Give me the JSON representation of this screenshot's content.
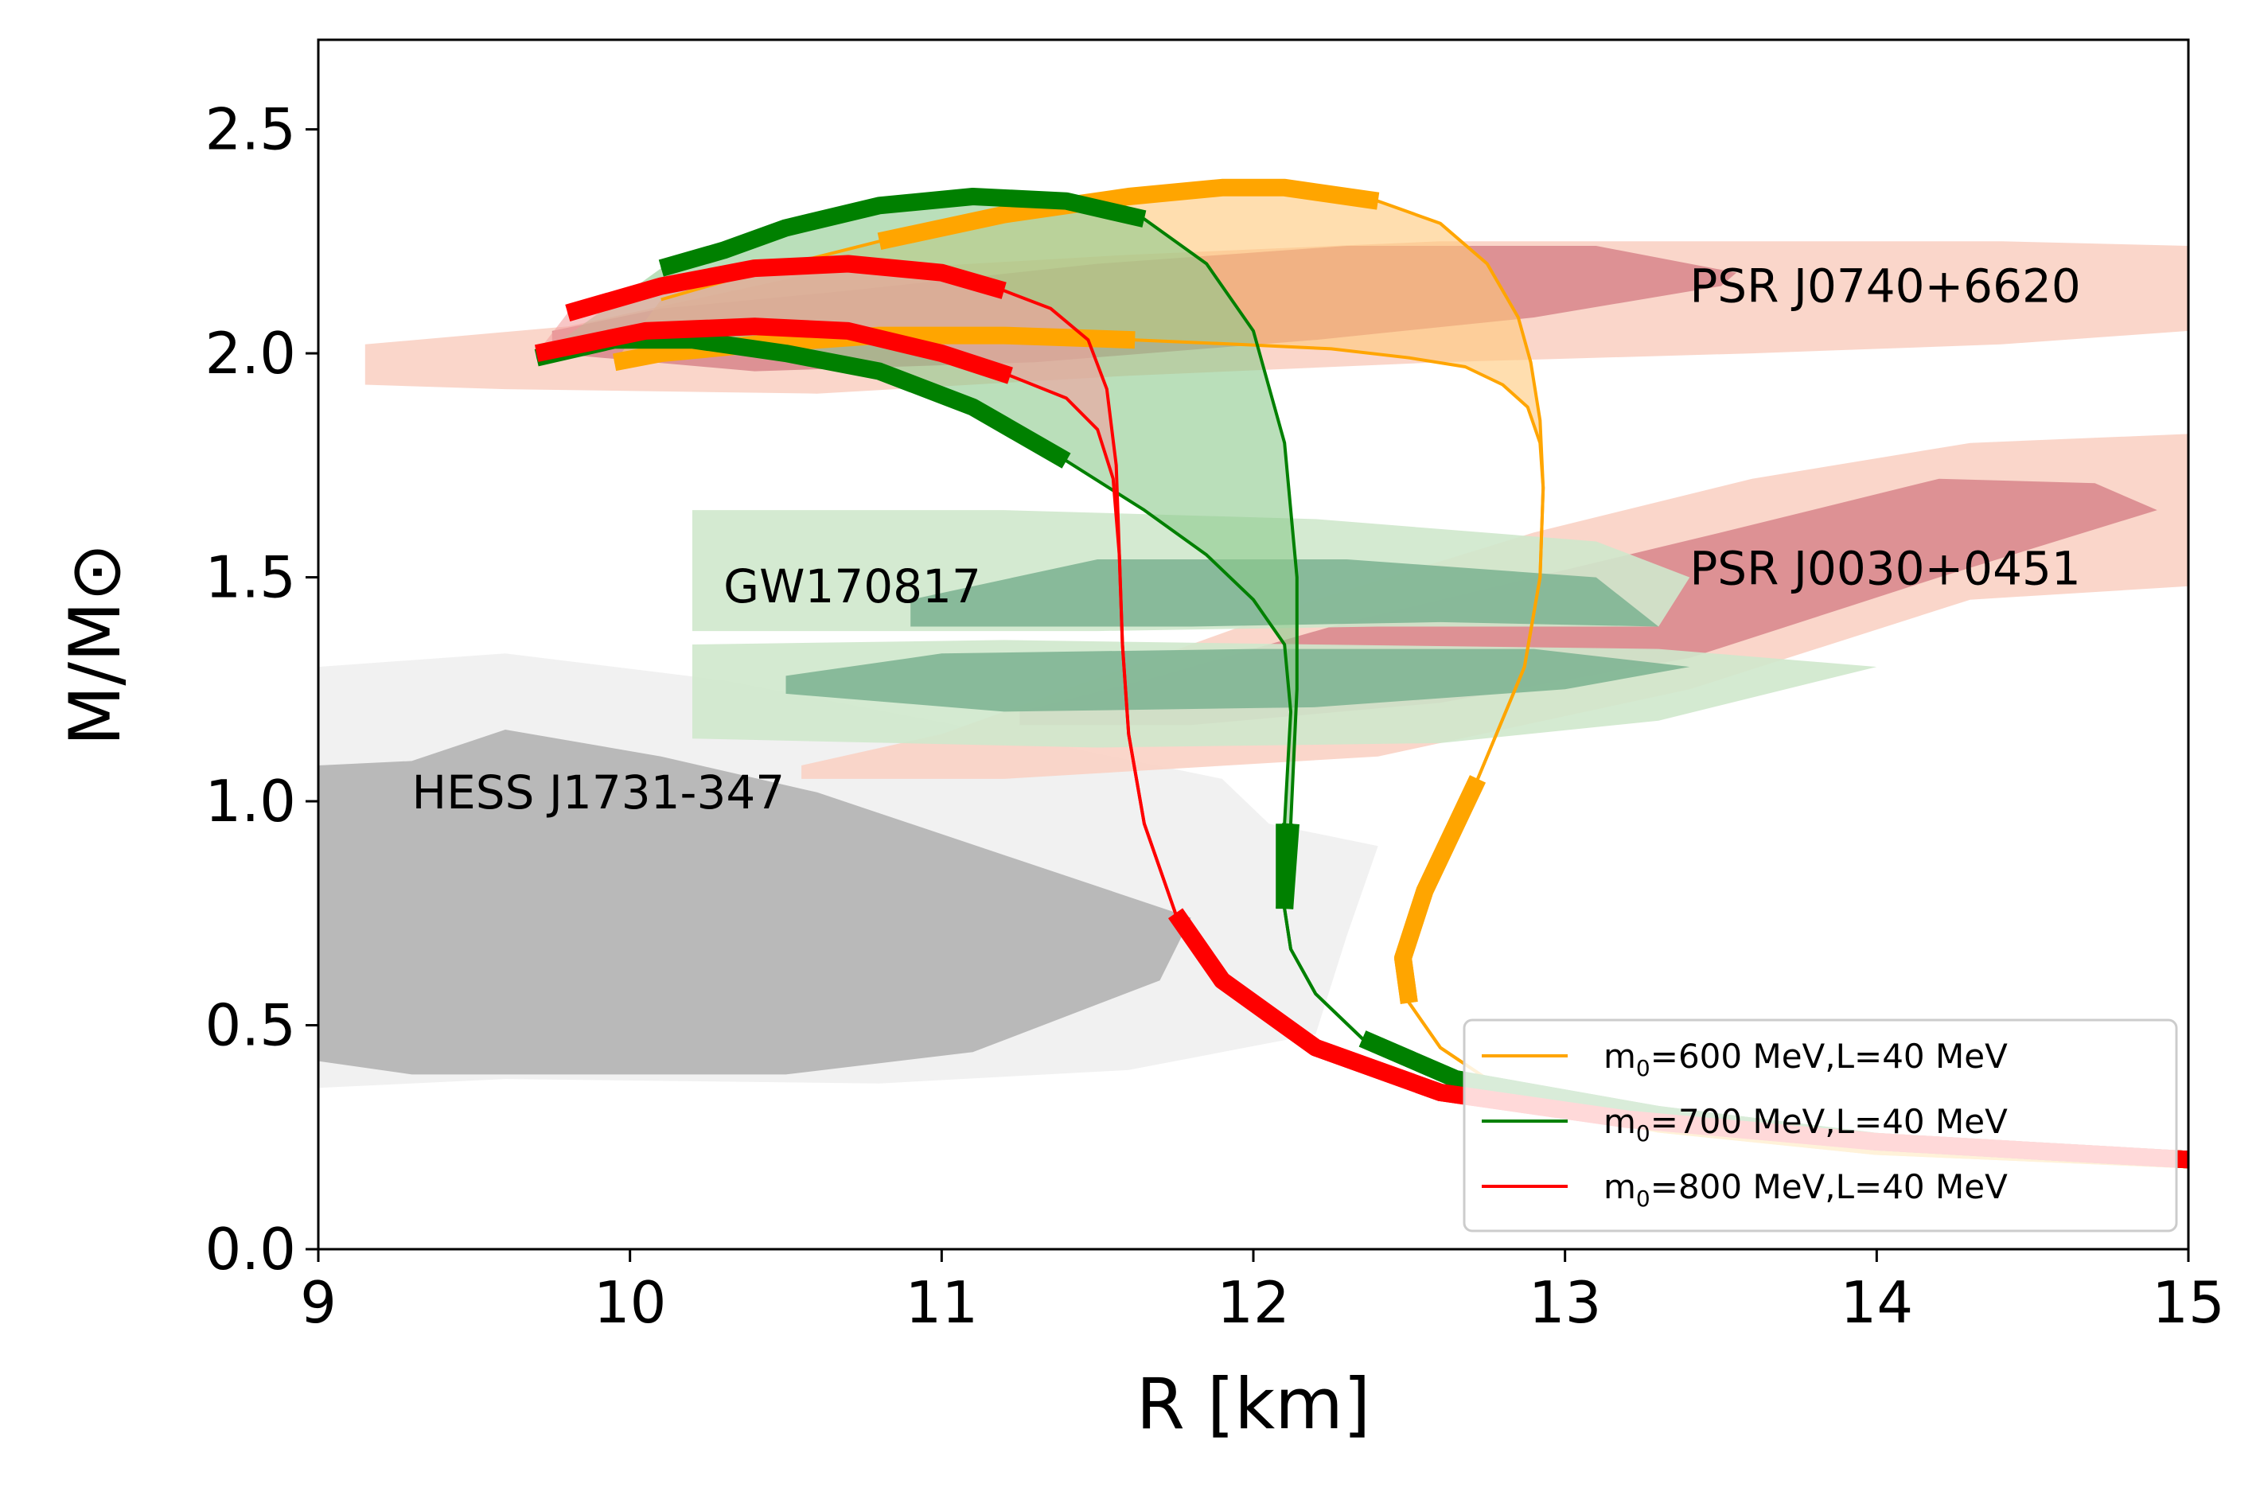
{
  "chart_data": {
    "type": "line",
    "title": "",
    "xlabel": "R [km]",
    "ylabel": "M/M⊙",
    "xlim": [
      9,
      15
    ],
    "ylim": [
      0,
      2.7
    ],
    "xticks": [
      9,
      10,
      11,
      12,
      13,
      14,
      15
    ],
    "xtick_labels": [
      "9",
      "10",
      "11",
      "12",
      "13",
      "14",
      "15"
    ],
    "yticks": [
      0,
      0.5,
      1.0,
      1.5,
      2.0,
      2.5
    ],
    "ytick_labels": [
      "0.0",
      "0.5",
      "1.0",
      "1.5",
      "2.0",
      "2.5"
    ],
    "grid": false,
    "legend_position": "bottom-right",
    "annotations": [
      {
        "text": "PSR J0740+6620",
        "x": 13.4,
        "y": 2.15
      },
      {
        "text": "PSR J0030+0451",
        "x": 13.4,
        "y": 1.52
      },
      {
        "text": "GW170817",
        "x": 10.3,
        "y": 1.48
      },
      {
        "text": "HESS J1731-347",
        "x": 9.3,
        "y": 1.02
      }
    ],
    "regions": [
      {
        "name": "HESS J1731-347 outer",
        "color": "#f0f0f0",
        "points": [
          [
            9,
            0.36
          ],
          [
            9.6,
            0.38
          ],
          [
            10.8,
            0.37
          ],
          [
            11.6,
            0.4
          ],
          [
            12.2,
            0.48
          ],
          [
            12.3,
            0.7
          ],
          [
            12.4,
            0.9
          ],
          [
            12.05,
            0.95
          ],
          [
            11.9,
            1.05
          ],
          [
            11.2,
            1.15
          ],
          [
            10.3,
            1.27
          ],
          [
            9.6,
            1.33
          ],
          [
            9,
            1.3
          ]
        ]
      },
      {
        "name": "HESS J1731-347 inner",
        "color": "#b3b3b3",
        "points": [
          [
            9,
            0.42
          ],
          [
            9.3,
            0.39
          ],
          [
            10.5,
            0.39
          ],
          [
            11.1,
            0.44
          ],
          [
            11.7,
            0.6
          ],
          [
            11.8,
            0.74
          ],
          [
            11.2,
            0.88
          ],
          [
            10.6,
            1.02
          ],
          [
            10.1,
            1.1
          ],
          [
            9.6,
            1.16
          ],
          [
            9.3,
            1.09
          ],
          [
            9,
            1.08
          ]
        ]
      },
      {
        "name": "PSR J0740+6620 outer",
        "color": "#fad2c4",
        "points": [
          [
            9.15,
            1.93
          ],
          [
            9.6,
            1.92
          ],
          [
            10.6,
            1.91
          ],
          [
            11.6,
            1.95
          ],
          [
            12.6,
            1.98
          ],
          [
            13.6,
            2.0
          ],
          [
            14.4,
            2.02
          ],
          [
            15,
            2.05
          ],
          [
            15,
            2.24
          ],
          [
            14.4,
            2.25
          ],
          [
            13.6,
            2.25
          ],
          [
            12.6,
            2.25
          ],
          [
            11.6,
            2.22
          ],
          [
            10.6,
            2.18
          ],
          [
            9.8,
            2.06
          ],
          [
            9.15,
            2.02
          ]
        ]
      },
      {
        "name": "PSR J0740+6620 inner",
        "color": "#d98a8e",
        "points": [
          [
            9.75,
            2.0
          ],
          [
            10.4,
            1.96
          ],
          [
            11.3,
            1.98
          ],
          [
            12.2,
            2.03
          ],
          [
            12.9,
            2.08
          ],
          [
            13.5,
            2.15
          ],
          [
            13.55,
            2.18
          ],
          [
            13.1,
            2.24
          ],
          [
            12.3,
            2.24
          ],
          [
            11.5,
            2.2
          ],
          [
            10.7,
            2.14
          ],
          [
            10.1,
            2.1
          ],
          [
            9.75,
            2.05
          ]
        ]
      },
      {
        "name": "PSR J0030+0451 outer",
        "color": "#fad2c4",
        "points": [
          [
            10.55,
            1.05
          ],
          [
            11.2,
            1.05
          ],
          [
            12.4,
            1.1
          ],
          [
            13.4,
            1.25
          ],
          [
            14.3,
            1.45
          ],
          [
            15,
            1.48
          ],
          [
            15,
            1.82
          ],
          [
            14.3,
            1.8
          ],
          [
            13.6,
            1.72
          ],
          [
            12.9,
            1.6
          ],
          [
            12.2,
            1.45
          ],
          [
            11.6,
            1.3
          ],
          [
            11,
            1.15
          ],
          [
            10.55,
            1.08
          ]
        ]
      },
      {
        "name": "PSR J0030+0451 inner",
        "color": "#d98a8e",
        "points": [
          [
            11.25,
            1.17
          ],
          [
            11.8,
            1.17
          ],
          [
            12.6,
            1.22
          ],
          [
            13.4,
            1.32
          ],
          [
            14.2,
            1.5
          ],
          [
            14.9,
            1.65
          ],
          [
            14.7,
            1.71
          ],
          [
            14.2,
            1.72
          ],
          [
            13.5,
            1.6
          ],
          [
            12.9,
            1.5
          ],
          [
            12.3,
            1.4
          ],
          [
            11.7,
            1.28
          ],
          [
            11.25,
            1.2
          ]
        ]
      },
      {
        "name": "GW170817 outer upper",
        "color": "#cfe8cc",
        "points": [
          [
            10.2,
            1.38
          ],
          [
            11.5,
            1.38
          ],
          [
            12.4,
            1.39
          ],
          [
            13.3,
            1.39
          ],
          [
            13.4,
            1.5
          ],
          [
            13.1,
            1.58
          ],
          [
            12.2,
            1.63
          ],
          [
            11.2,
            1.65
          ],
          [
            10.2,
            1.65
          ]
        ]
      },
      {
        "name": "GW170817 outer lower",
        "color": "#cfe8cc",
        "points": [
          [
            10.2,
            1.14
          ],
          [
            11.5,
            1.12
          ],
          [
            12.6,
            1.13
          ],
          [
            13.3,
            1.18
          ],
          [
            14.0,
            1.3
          ],
          [
            13.3,
            1.34
          ],
          [
            12.2,
            1.35
          ],
          [
            11.2,
            1.36
          ],
          [
            10.2,
            1.35
          ]
        ]
      },
      {
        "name": "GW170817 inner upper",
        "color": "#7fb594",
        "points": [
          [
            10.9,
            1.39
          ],
          [
            11.8,
            1.39
          ],
          [
            12.6,
            1.4
          ],
          [
            13.3,
            1.39
          ],
          [
            13.1,
            1.5
          ],
          [
            12.3,
            1.54
          ],
          [
            11.5,
            1.54
          ],
          [
            10.9,
            1.45
          ]
        ]
      },
      {
        "name": "GW170817 inner lower",
        "color": "#7fb594",
        "points": [
          [
            10.5,
            1.24
          ],
          [
            11.2,
            1.2
          ],
          [
            12.2,
            1.21
          ],
          [
            13.0,
            1.25
          ],
          [
            13.4,
            1.3
          ],
          [
            12.9,
            1.34
          ],
          [
            12.0,
            1.34
          ],
          [
            11.0,
            1.33
          ],
          [
            10.5,
            1.28
          ]
        ]
      }
    ],
    "series": [
      {
        "name": "m0=600 MeV,L=40 MeV",
        "legend_prefix": "m",
        "legend_sub": "0",
        "legend_suffix": "=600 MeV,L=40 MeV",
        "color": "#ffa500",
        "band_color": "#ffc87a",
        "curves": [
          {
            "x": [
              15.0,
              14.0,
              13.3,
              12.95,
              12.75,
              12.6,
              12.5,
              12.48,
              12.55,
              12.72,
              12.87,
              12.92,
              12.93,
              12.92,
              12.88,
              12.8,
              12.68,
              12.5,
              12.25,
              11.95,
              11.62,
              11.2,
              10.8,
              10.4,
              10.1,
              9.95
            ],
            "y": [
              0.2,
              0.23,
              0.28,
              0.33,
              0.38,
              0.45,
              0.55,
              0.65,
              0.8,
              1.05,
              1.3,
              1.5,
              1.7,
              1.8,
              1.88,
              1.93,
              1.97,
              1.99,
              2.01,
              2.02,
              2.03,
              2.04,
              2.04,
              2.02,
              2.0,
              1.98
            ],
            "thick": [
              [
                0,
                3
              ],
              [
                6,
                9
              ],
              [
                20,
                25
              ]
            ]
          },
          {
            "x": [
              15.0,
              14.0,
              13.3,
              12.95,
              12.75,
              12.6,
              12.5,
              12.48,
              12.55,
              12.72,
              12.87,
              12.92,
              12.93,
              12.92,
              12.89,
              12.85,
              12.75,
              12.6,
              12.4,
              12.1,
              11.9,
              11.6,
              11.2,
              10.8,
              10.4,
              10.1
            ],
            "y": [
              0.2,
              0.23,
              0.28,
              0.33,
              0.38,
              0.45,
              0.55,
              0.65,
              0.8,
              1.05,
              1.3,
              1.5,
              1.7,
              1.85,
              1.98,
              2.08,
              2.2,
              2.29,
              2.34,
              2.37,
              2.37,
              2.35,
              2.31,
              2.25,
              2.18,
              2.12
            ],
            "thick": [
              [
                0,
                3
              ],
              [
                6,
                9
              ],
              [
                18,
                23
              ]
            ]
          }
        ]
      },
      {
        "name": "m0=700 MeV,L=40 MeV",
        "legend_prefix": "m",
        "legend_sub": "0",
        "legend_suffix": "=700 MeV,L=40 MeV",
        "color": "#008000",
        "band_color": "#8cc98c",
        "curves": [
          {
            "x": [
              15.0,
              14.0,
              13.3,
              12.65,
              12.35,
              12.2,
              12.12,
              12.1,
              12.1,
              12.12,
              12.1,
              12.0,
              11.85,
              11.65,
              11.4,
              11.1,
              10.8,
              10.5,
              10.2,
              9.95,
              9.7
            ],
            "y": [
              0.2,
              0.24,
              0.3,
              0.38,
              0.47,
              0.57,
              0.67,
              0.76,
              0.95,
              1.2,
              1.35,
              1.45,
              1.55,
              1.65,
              1.76,
              1.88,
              1.96,
              2.0,
              2.03,
              2.03,
              1.99
            ],
            "thick": [
              [
                0,
                4
              ],
              [
                7,
                8
              ],
              [
                14,
                20
              ]
            ]
          },
          {
            "x": [
              15.0,
              14.0,
              13.3,
              12.65,
              12.35,
              12.2,
              12.12,
              12.1,
              12.12,
              12.14,
              12.14,
              12.1,
              12.0,
              11.85,
              11.65,
              11.4,
              11.1,
              10.8,
              10.5,
              10.3,
              10.1
            ],
            "y": [
              0.2,
              0.24,
              0.3,
              0.38,
              0.47,
              0.57,
              0.67,
              0.76,
              0.95,
              1.25,
              1.5,
              1.8,
              2.05,
              2.2,
              2.3,
              2.34,
              2.35,
              2.33,
              2.28,
              2.23,
              2.19
            ],
            "thick": [
              [
                0,
                4
              ],
              [
                7,
                8
              ],
              [
                14,
                20
              ]
            ]
          }
        ]
      },
      {
        "name": "m0=800 MeV,L=40 MeV",
        "legend_prefix": "m",
        "legend_sub": "0",
        "legend_suffix": "=800 MeV,L=40 MeV",
        "color": "#ff0000",
        "band_color": "#f4a0a0",
        "curves": [
          {
            "x": [
              15.0,
              14.0,
              13.2,
              12.6,
              12.2,
              11.9,
              11.75,
              11.65,
              11.6,
              11.58,
              11.57,
              11.55,
              11.5,
              11.4,
              11.22,
              11.0,
              10.7,
              10.4,
              10.05,
              9.7
            ],
            "y": [
              0.2,
              0.24,
              0.29,
              0.35,
              0.45,
              0.6,
              0.75,
              0.95,
              1.15,
              1.35,
              1.55,
              1.72,
              1.83,
              1.9,
              1.95,
              2.0,
              2.05,
              2.06,
              2.05,
              2.0
            ],
            "thick": [
              [
                0,
                6
              ],
              [
                14,
                19
              ]
            ]
          },
          {
            "x": [
              15.0,
              14.0,
              13.2,
              12.6,
              12.2,
              11.9,
              11.75,
              11.65,
              11.6,
              11.58,
              11.57,
              11.56,
              11.53,
              11.47,
              11.35,
              11.2,
              11.0,
              10.7,
              10.4,
              10.1,
              9.8
            ],
            "y": [
              0.2,
              0.24,
              0.29,
              0.35,
              0.45,
              0.6,
              0.75,
              0.95,
              1.15,
              1.35,
              1.55,
              1.75,
              1.92,
              2.03,
              2.1,
              2.14,
              2.18,
              2.2,
              2.19,
              2.15,
              2.09
            ],
            "thick": [
              [
                0,
                6
              ],
              [
                15,
                20
              ]
            ]
          }
        ]
      }
    ]
  }
}
